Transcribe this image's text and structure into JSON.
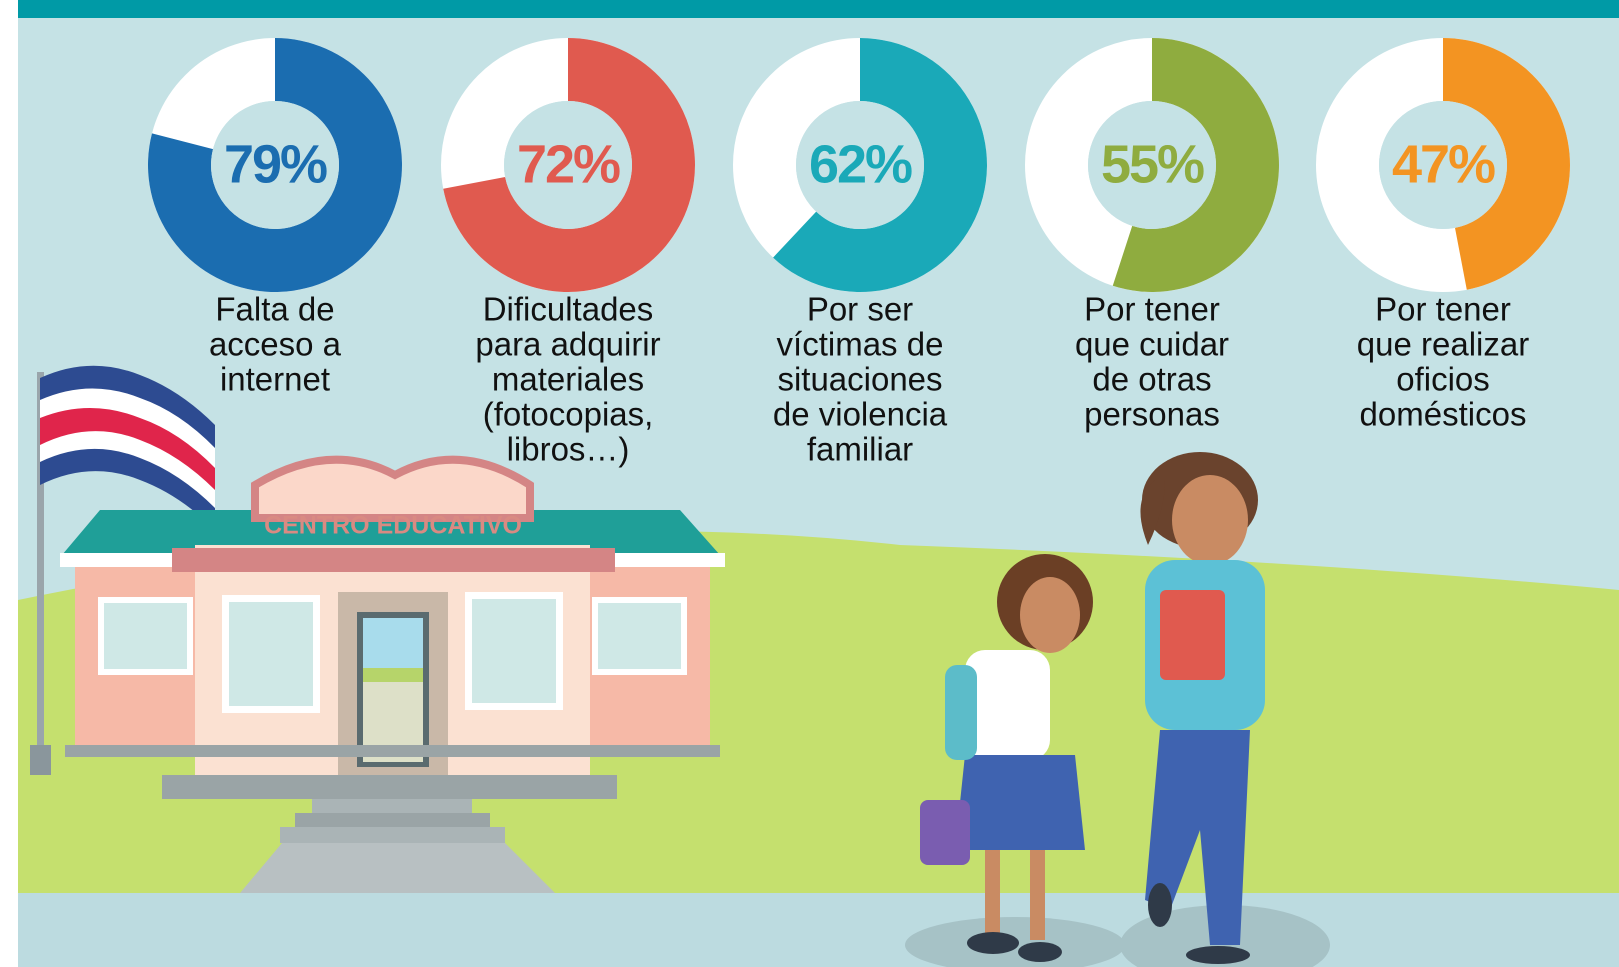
{
  "chart_data": [
    {
      "type": "donut",
      "values": [
        79
      ],
      "value_labels": [
        "79%"
      ],
      "color": "#1b6db0",
      "caption": [
        "Falta de",
        "acceso a",
        "internet"
      ]
    },
    {
      "type": "donut",
      "values": [
        72
      ],
      "value_labels": [
        "72%"
      ],
      "color": "#e05a4f",
      "caption": [
        "Dificultades",
        "para adquirir",
        "materiales",
        "(fotocopias,",
        "libros…)"
      ]
    },
    {
      "type": "donut",
      "values": [
        62
      ],
      "value_labels": [
        "62%"
      ],
      "color": "#1aa9b8",
      "caption": [
        "Por ser",
        "víctimas de",
        "situaciones",
        "de violencia",
        "familiar"
      ]
    },
    {
      "type": "donut",
      "values": [
        55
      ],
      "value_labels": [
        "55%"
      ],
      "color": "#8fac3f",
      "caption": [
        "Por tener",
        "que cuidar",
        "de otras",
        "personas"
      ]
    },
    {
      "type": "donut",
      "values": [
        47
      ],
      "value_labels": [
        "47%"
      ],
      "color": "#f39422",
      "caption": [
        "Por tener",
        "que realizar",
        "oficios",
        "domésticos"
      ]
    }
  ],
  "illustration": {
    "building_sign": "CENTRO EDUCATIVO"
  }
}
